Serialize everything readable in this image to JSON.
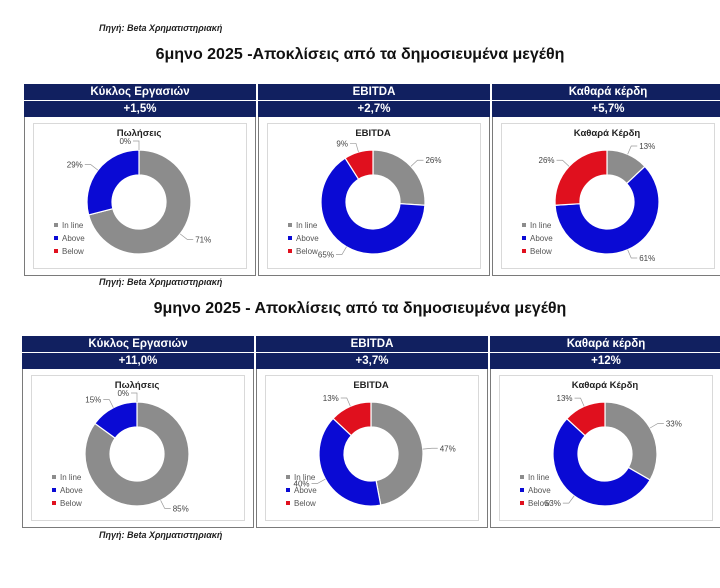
{
  "source_label": "Πηγή: Beta Χρηματιστηριακή",
  "colors": {
    "inline": "#8c8c8c",
    "above": "#0a0ad4",
    "below": "#e0101e",
    "header_bg": "#112060"
  },
  "sections": [
    {
      "title": "6μηνο 2025 -Αποκλίσεις από τα δημοσιευμένα μεγέθη",
      "panels": [
        {
          "header": "Κύκλος Εργασιών",
          "change": "+1,5%"
        },
        {
          "header": "EBITDA",
          "change": "+2,7%"
        },
        {
          "header": "Καθαρά κέρδη",
          "change": "+5,7%"
        }
      ]
    },
    {
      "title": "9μηνο 2025 - Αποκλίσεις από τα δημοσιευμένα μεγέθη",
      "panels": [
        {
          "header": "Κύκλος Εργασιών",
          "change": "+11,0%"
        },
        {
          "header": "EBITDA",
          "change": "+3,7%"
        },
        {
          "header": "Καθαρά κέρδη",
          "change": "+12%"
        }
      ]
    }
  ],
  "chart_data": [
    {
      "type": "pie",
      "section": "6μηνο 2025",
      "title": "Πωλήσεις",
      "legend": [
        "In line",
        "Above",
        "Below"
      ],
      "values": [
        71,
        29,
        0
      ],
      "labels": [
        "71%",
        "29%",
        "0%"
      ]
    },
    {
      "type": "pie",
      "section": "6μηνο 2025",
      "title": "EBITDA",
      "legend": [
        "In line",
        "Above",
        "Below"
      ],
      "values": [
        26,
        65,
        9
      ],
      "labels": [
        "26%",
        "65%",
        "9%"
      ]
    },
    {
      "type": "pie",
      "section": "6μηνο 2025",
      "title": "Καθαρά Κέρδη",
      "legend": [
        "In line",
        "Above",
        "Below"
      ],
      "values": [
        13,
        61,
        26
      ],
      "labels": [
        "13%",
        "61%",
        "26%"
      ]
    },
    {
      "type": "pie",
      "section": "9μηνο 2025",
      "title": "Πωλήσεις",
      "legend": [
        "In line",
        "Above",
        "Below"
      ],
      "values": [
        85,
        15,
        0
      ],
      "labels": [
        "85%",
        "15%",
        "0%"
      ]
    },
    {
      "type": "pie",
      "section": "9μηνο 2025",
      "title": "EBITDA",
      "legend": [
        "In line",
        "Above",
        "Below"
      ],
      "values": [
        47,
        40,
        13
      ],
      "labels": [
        "47%",
        "40%",
        "13%"
      ]
    },
    {
      "type": "pie",
      "section": "9μηνο 2025",
      "title": "Καθαρά Κέρδη",
      "legend": [
        "In line",
        "Above",
        "Below"
      ],
      "values": [
        33,
        53,
        13
      ],
      "labels": [
        "33%",
        "53%",
        "13%"
      ]
    }
  ]
}
